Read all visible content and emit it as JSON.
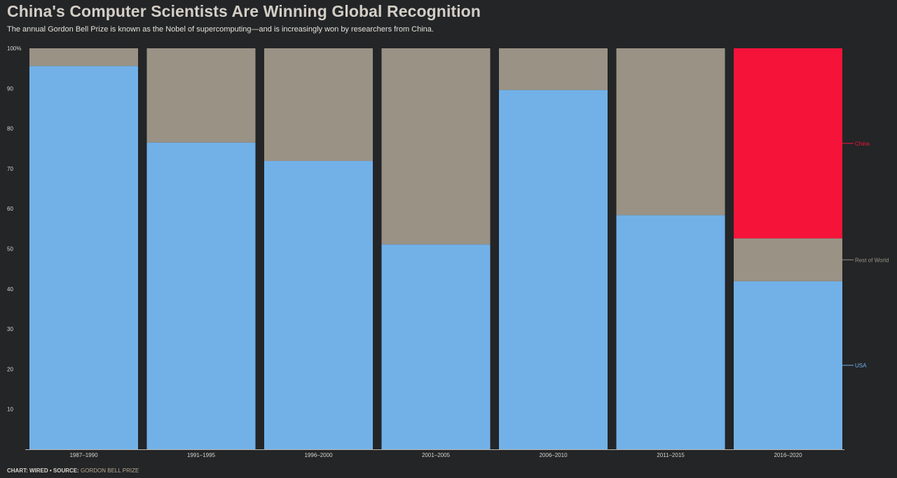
{
  "title": "China's Computer Scientists Are Winning Global Recognition",
  "subtitle": "The annual Gordon Bell Prize is known as the Nobel of supercomputing—and is increasingly won by researchers from China.",
  "footer": {
    "credit": "CHART: WIRED • SOURCE: ",
    "source": "GORDON BELL PRIZE"
  },
  "colors": {
    "USA": "#72b1e8",
    "Rest of World": "#9a9285",
    "China": "#f5133a",
    "background": "#232527",
    "axis_text": "#d9d4cc"
  },
  "chart_data": {
    "type": "bar",
    "stacked": true,
    "categories": [
      "1987–1990",
      "1991–1995",
      "1996–2000",
      "2001–2005",
      "2006–2010",
      "2011–2015",
      "2016–2020"
    ],
    "series": [
      {
        "name": "USA",
        "values": [
          95.6,
          76.5,
          71.9,
          51.1,
          89.6,
          58.4,
          41.9
        ]
      },
      {
        "name": "Rest of World",
        "values": [
          4.4,
          23.5,
          28.1,
          48.9,
          10.4,
          41.6,
          10.7
        ]
      },
      {
        "name": "China",
        "values": [
          0,
          0,
          0,
          0,
          0,
          0,
          47.4
        ]
      }
    ],
    "ylim": [
      0,
      100
    ],
    "yticks": [
      10,
      20,
      30,
      40,
      50,
      60,
      70,
      80,
      90,
      100
    ],
    "ytick_labels": [
      "10",
      "20",
      "30",
      "40",
      "50",
      "60",
      "70",
      "80",
      "90",
      "100%"
    ],
    "legend": "right, labels aligned to last bar",
    "xlabel": "",
    "ylabel": ""
  }
}
